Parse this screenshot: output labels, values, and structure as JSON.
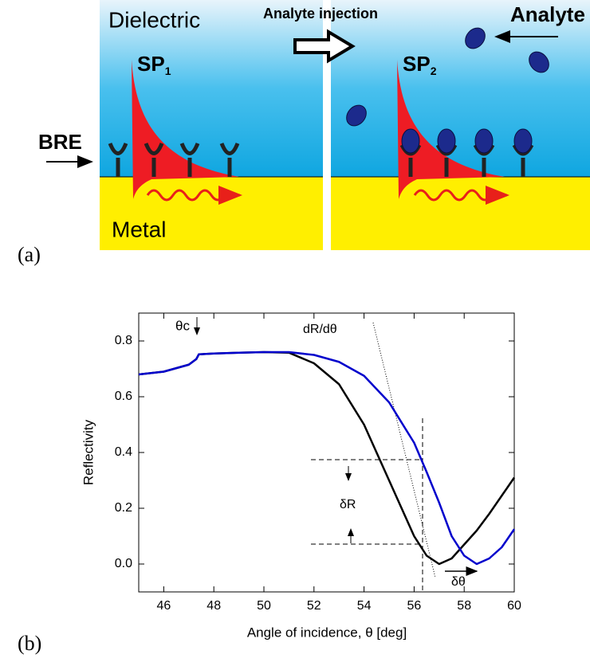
{
  "diagram": {
    "dielectric": "Dielectric",
    "injection": "Analyte injection",
    "analyte": "Analyte",
    "sp1": "SP",
    "sp1_sub": "1",
    "sp2": "SP",
    "sp2_sub": "2",
    "bre": "BRE",
    "metal": "Metal"
  },
  "panel_labels": [
    "(a)",
    "(b)"
  ],
  "chart_data": {
    "type": "line",
    "x_label": "Angle of incidence, θ [deg]",
    "y_label": "Reflectivity",
    "annotations": [
      "θc",
      "dR/dθ",
      "δR",
      "δθ"
    ],
    "x": [
      45,
      46,
      47,
      47.3,
      47.4,
      48,
      49,
      50,
      51,
      52,
      53,
      54,
      55,
      56,
      56.5,
      57,
      57.5,
      58,
      58.5,
      59,
      59.5,
      60
    ],
    "series": [
      {
        "color": "#000000",
        "values": [
          0.68,
          0.69,
          0.715,
          0.735,
          0.752,
          0.755,
          0.758,
          0.76,
          0.758,
          0.72,
          0.645,
          0.5,
          0.3,
          0.1,
          0.03,
          0.0,
          0.02,
          0.07,
          0.12,
          0.18,
          0.245,
          0.31
        ]
      },
      {
        "color": "#0000cc",
        "values": [
          0.68,
          0.69,
          0.715,
          0.735,
          0.752,
          0.755,
          0.758,
          0.76,
          0.76,
          0.75,
          0.725,
          0.675,
          0.58,
          0.435,
          0.33,
          0.22,
          0.1,
          0.03,
          0.0,
          0.02,
          0.06,
          0.125
        ]
      }
    ],
    "xlim": [
      45,
      60
    ],
    "xticks": [
      46,
      48,
      50,
      52,
      54,
      56,
      58,
      60
    ],
    "ylim": [
      -0.1,
      0.9
    ],
    "yticks": [
      {
        "value": 0,
        "label": "0.0"
      },
      {
        "value": 0.2,
        "label": "0.2"
      },
      {
        "value": 0.4,
        "label": "0.4"
      },
      {
        "value": 0.6,
        "label": "0.6"
      },
      {
        "value": 0.8,
        "label": "0.8"
      }
    ]
  }
}
